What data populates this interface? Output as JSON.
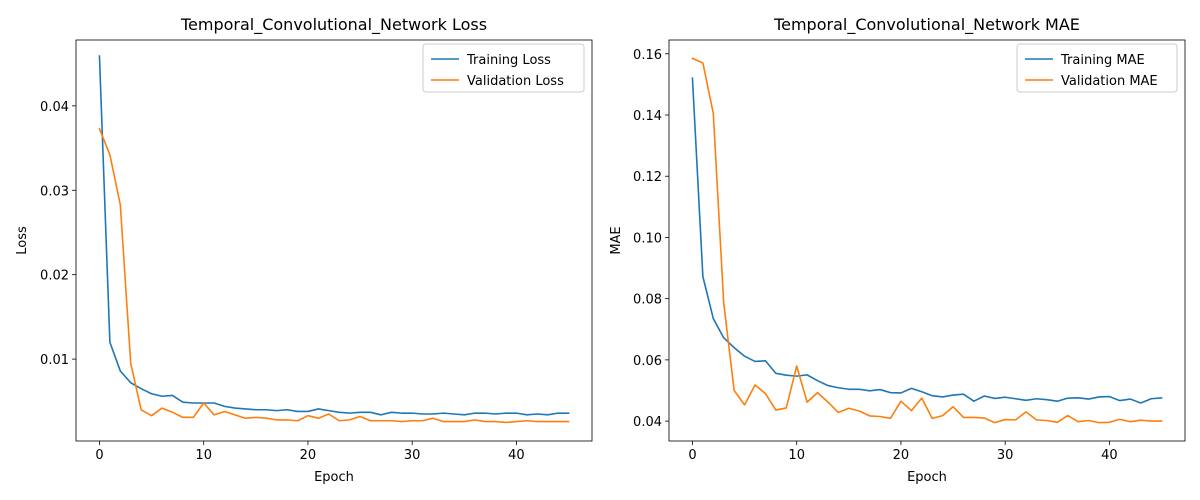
{
  "chart_data": [
    {
      "type": "line",
      "title": "Temporal_Convolutional_Network Loss",
      "xlabel": "Epoch",
      "ylabel": "Loss",
      "xlim": [
        -2.25,
        47.25
      ],
      "ylim": [
        0.0003,
        0.0478
      ],
      "xticks": [
        0,
        10,
        20,
        30,
        40
      ],
      "yticks": [
        0.01,
        0.02,
        0.03,
        0.04
      ],
      "ytick_labels": [
        "0.01",
        "0.02",
        "0.03",
        "0.04"
      ],
      "legend_position": "top-right",
      "grid": false,
      "x": [
        0,
        1,
        2,
        3,
        4,
        5,
        6,
        7,
        8,
        9,
        10,
        11,
        12,
        13,
        14,
        15,
        16,
        17,
        18,
        19,
        20,
        21,
        22,
        23,
        24,
        25,
        26,
        27,
        28,
        29,
        30,
        31,
        32,
        33,
        34,
        35,
        36,
        37,
        38,
        39,
        40,
        41,
        42,
        43,
        44,
        45
      ],
      "series": [
        {
          "name": "Training Loss",
          "color": "#1f77b4",
          "values": [
            0.0459,
            0.012,
            0.0086,
            0.0072,
            0.0065,
            0.0059,
            0.0056,
            0.0057,
            0.0049,
            0.0048,
            0.0048,
            0.0048,
            0.0044,
            0.0042,
            0.0041,
            0.004,
            0.004,
            0.0039,
            0.004,
            0.0038,
            0.0038,
            0.0041,
            0.0039,
            0.0037,
            0.0036,
            0.0037,
            0.0037,
            0.0034,
            0.0037,
            0.0036,
            0.0036,
            0.0035,
            0.0035,
            0.0036,
            0.0035,
            0.0034,
            0.0036,
            0.0036,
            0.0035,
            0.0036,
            0.0036,
            0.0034,
            0.0035,
            0.0034,
            0.0036,
            0.0036
          ]
        },
        {
          "name": "Validation Loss",
          "color": "#ff7f0e",
          "values": [
            0.0373,
            0.0342,
            0.0283,
            0.0095,
            0.004,
            0.0033,
            0.0042,
            0.0037,
            0.0031,
            0.0031,
            0.0048,
            0.0034,
            0.0038,
            0.0034,
            0.003,
            0.0031,
            0.003,
            0.0028,
            0.0028,
            0.0027,
            0.0033,
            0.003,
            0.0035,
            0.0027,
            0.0028,
            0.0032,
            0.0027,
            0.0027,
            0.0027,
            0.0026,
            0.0027,
            0.0027,
            0.003,
            0.0026,
            0.0026,
            0.0026,
            0.0028,
            0.0026,
            0.0026,
            0.0025,
            0.0026,
            0.0027,
            0.0026,
            0.0026,
            0.0026,
            0.0026
          ]
        }
      ]
    },
    {
      "type": "line",
      "title": "Temporal_Convolutional_Network MAE",
      "xlabel": "Epoch",
      "ylabel": "MAE",
      "xlim": [
        -2.25,
        47.25
      ],
      "ylim": [
        0.0335,
        0.1645
      ],
      "xticks": [
        0,
        10,
        20,
        30,
        40
      ],
      "yticks": [
        0.04,
        0.06,
        0.08,
        0.1,
        0.12,
        0.14,
        0.16
      ],
      "ytick_labels": [
        "0.04",
        "0.06",
        "0.08",
        "0.10",
        "0.12",
        "0.14",
        "0.16"
      ],
      "legend_position": "top-right",
      "grid": false,
      "x": [
        0,
        1,
        2,
        3,
        4,
        5,
        6,
        7,
        8,
        9,
        10,
        11,
        12,
        13,
        14,
        15,
        16,
        17,
        18,
        19,
        20,
        21,
        22,
        23,
        24,
        25,
        26,
        27,
        28,
        29,
        30,
        31,
        32,
        33,
        34,
        35,
        36,
        37,
        38,
        39,
        40,
        41,
        42,
        43,
        44,
        45
      ],
      "series": [
        {
          "name": "Training MAE",
          "color": "#1f77b4",
          "values": [
            0.152,
            0.0872,
            0.0735,
            0.0672,
            0.064,
            0.0612,
            0.0595,
            0.0597,
            0.0556,
            0.055,
            0.0547,
            0.0551,
            0.0532,
            0.0516,
            0.0509,
            0.0504,
            0.0504,
            0.0499,
            0.0503,
            0.0493,
            0.0492,
            0.0507,
            0.0496,
            0.0483,
            0.0479,
            0.0485,
            0.0488,
            0.0465,
            0.0482,
            0.0474,
            0.0478,
            0.0473,
            0.0468,
            0.0473,
            0.047,
            0.0465,
            0.0475,
            0.0476,
            0.0472,
            0.0479,
            0.048,
            0.0467,
            0.0472,
            0.0459,
            0.0473,
            0.0476
          ]
        },
        {
          "name": "Validation MAE",
          "color": "#ff7f0e",
          "values": [
            0.1585,
            0.157,
            0.1405,
            0.0785,
            0.05,
            0.0453,
            0.0518,
            0.049,
            0.0436,
            0.0443,
            0.058,
            0.0462,
            0.0493,
            0.0462,
            0.0428,
            0.0442,
            0.0433,
            0.0417,
            0.0415,
            0.0409,
            0.0465,
            0.0434,
            0.0475,
            0.0409,
            0.0418,
            0.0447,
            0.0412,
            0.0412,
            0.041,
            0.0395,
            0.0405,
            0.0404,
            0.043,
            0.0404,
            0.0402,
            0.0396,
            0.0418,
            0.0398,
            0.0402,
            0.0395,
            0.0396,
            0.0406,
            0.0398,
            0.0403,
            0.04,
            0.04
          ]
        }
      ]
    }
  ]
}
